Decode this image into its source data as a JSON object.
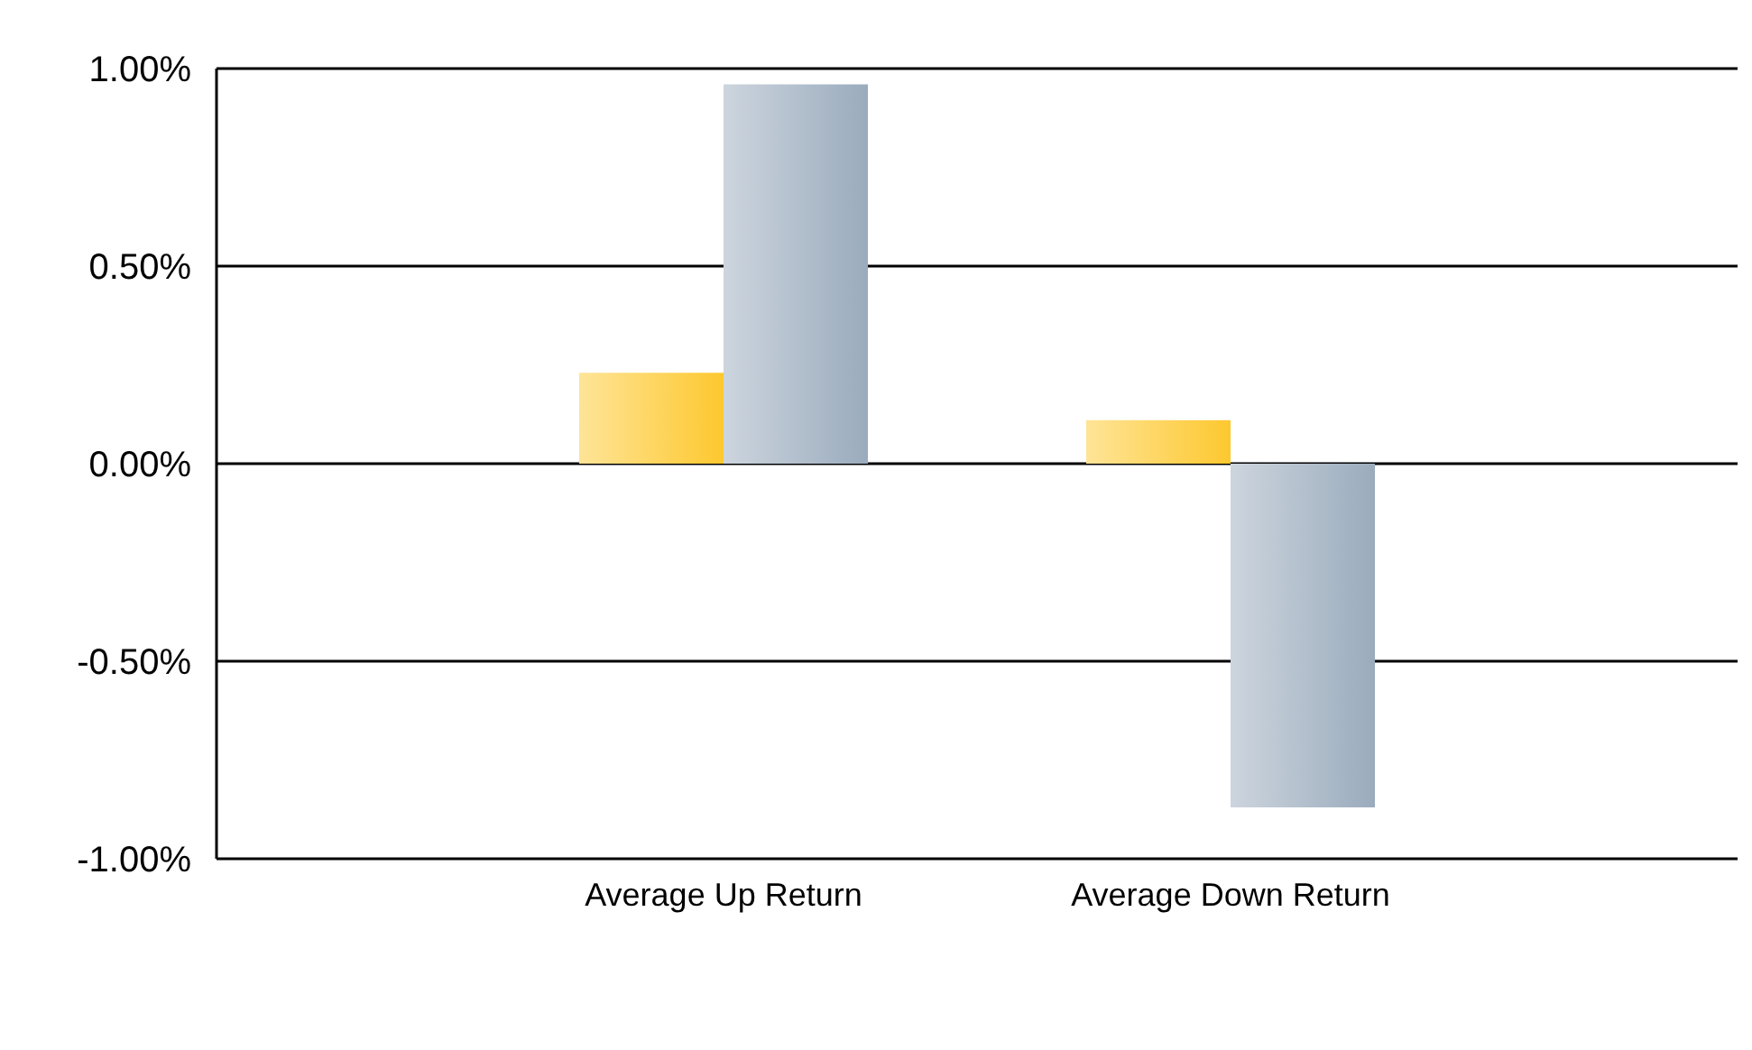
{
  "chart_data": {
    "type": "bar",
    "categories": [
      "Average Up Return",
      "Average Down Return"
    ],
    "series": [
      {
        "color": "#fdc82f",
        "values": [
          0.23,
          0.11
        ]
      },
      {
        "color": "#9aabbd",
        "values": [
          0.96,
          -0.87
        ]
      }
    ],
    "ylim": [
      -1,
      1
    ],
    "yticks": [
      {
        "value": -1,
        "label": "-1.00%"
      },
      {
        "value": -0.5,
        "label": "-0.50%"
      },
      {
        "value": 0,
        "label": "0.00%"
      },
      {
        "value": 0.5,
        "label": "0.50%"
      },
      {
        "value": 1,
        "label": "1.00%"
      }
    ],
    "grid": "y"
  }
}
